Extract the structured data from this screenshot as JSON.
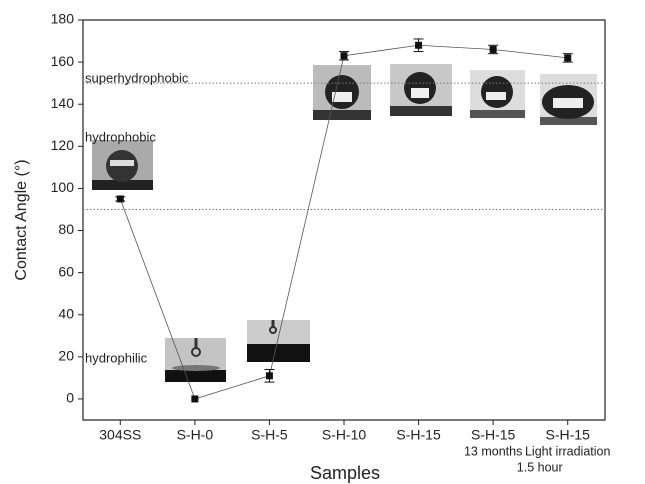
{
  "chart_data": {
    "type": "line",
    "y_label": "Contact Angle (°)",
    "x_label": "Samples",
    "categories": [
      "304SS",
      "S-H-0",
      "S-H-5",
      "S-H-10",
      "S-H-15",
      "S-H-15",
      "S-H-15"
    ],
    "category_notes": [
      [],
      [],
      [],
      [],
      [],
      [
        "13 months"
      ],
      [
        "Light irradiation",
        "1.5 hour"
      ]
    ],
    "values": [
      95,
      0,
      11,
      163,
      168,
      166,
      162
    ],
    "errors": [
      1,
      0,
      3,
      2,
      3,
      2,
      2
    ],
    "color": "#111111",
    "ylim": [
      -10,
      180
    ],
    "yticks": [
      0,
      20,
      40,
      60,
      80,
      100,
      120,
      140,
      160,
      180
    ],
    "reference_lines": [
      150,
      90
    ],
    "annotations": [
      {
        "text": "superhydrophobic",
        "y": 152
      },
      {
        "text": "hydrophobic",
        "y": 124
      },
      {
        "text": "hydrophilic",
        "y": 19
      }
    ]
  }
}
